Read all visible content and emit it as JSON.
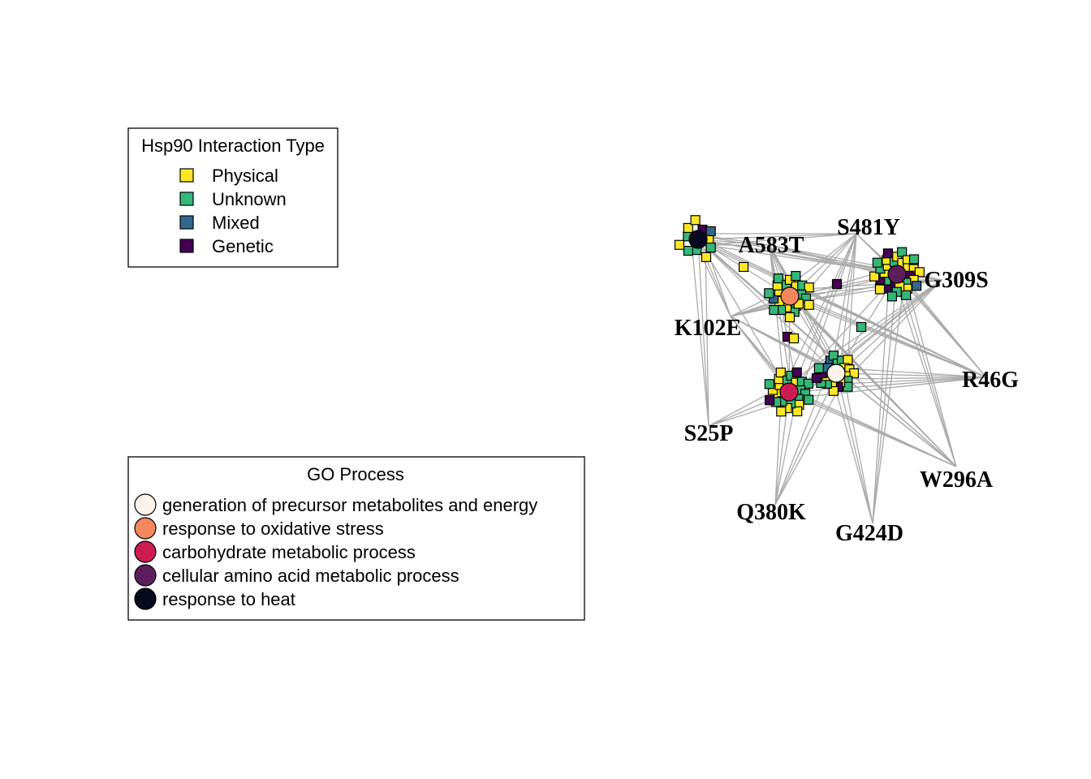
{
  "interaction_legend": {
    "title": "Hsp90 Interaction Type",
    "items": [
      {
        "label": "Physical",
        "color": "#FDE725"
      },
      {
        "label": "Unknown",
        "color": "#35B779"
      },
      {
        "label": "Mixed",
        "color": "#31688E"
      },
      {
        "label": "Genetic",
        "color": "#440154"
      }
    ]
  },
  "go_legend": {
    "title": "GO Process",
    "items": [
      {
        "label": "generation of precursor metabolites and energy",
        "color": "#FCF2E8"
      },
      {
        "label": "response to oxidative stress",
        "color": "#F4875E"
      },
      {
        "label": "carbohydrate metabolic process",
        "color": "#CC1D52"
      },
      {
        "label": "cellular amino acid metabolic process",
        "color": "#5D1F5C"
      },
      {
        "label": "response to heat",
        "color": "#07091E"
      }
    ]
  },
  "mutants": [
    "S481Y",
    "A583T",
    "G309S",
    "K102E",
    "R46G",
    "S25P",
    "W296A",
    "Q380K",
    "G424D"
  ]
}
